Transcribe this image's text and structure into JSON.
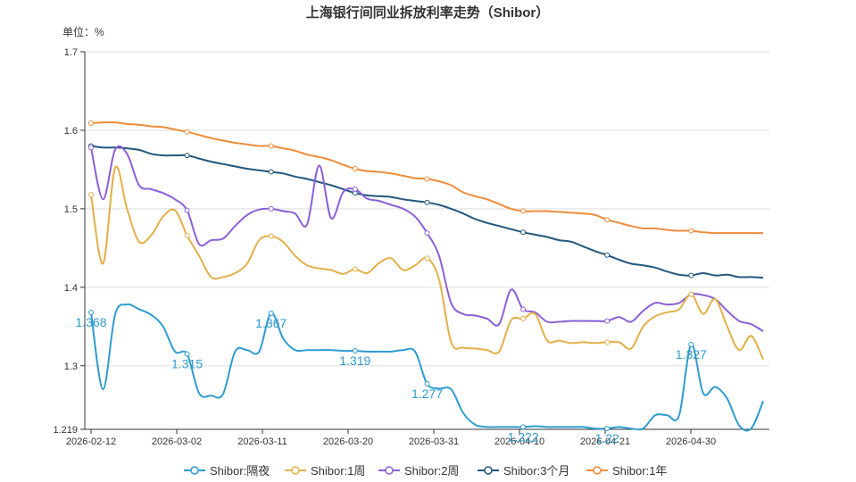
{
  "chart_data": {
    "type": "line",
    "title": "上海银行间同业拆放利率走势（Shibor）",
    "unit_label": "单位：%",
    "ylim": [
      1.219,
      1.7
    ],
    "yticks": [
      "1.219",
      "1.3",
      "1.4",
      "1.5",
      "1.6",
      "1.7"
    ],
    "xticks": [
      "2026-02-12",
      "2026-03-02",
      "2026-03-11",
      "2026-03-20",
      "2026-03-31",
      "2026-04-10",
      "2026-04-21",
      "2026-04-30"
    ],
    "grid": true,
    "legend_position": "bottom",
    "series": [
      {
        "name": "Shibor:隔夜",
        "color": "#2e9ccf",
        "values": [
          1.368,
          1.27,
          1.365,
          1.378,
          1.372,
          1.365,
          1.35,
          1.318,
          1.315,
          1.265,
          1.262,
          1.264,
          1.318,
          1.32,
          1.318,
          1.367,
          1.335,
          1.32,
          1.32,
          1.32,
          1.32,
          1.319,
          1.319,
          1.318,
          1.318,
          1.318,
          1.32,
          1.318,
          1.277,
          1.271,
          1.27,
          1.24,
          1.225,
          1.222,
          1.222,
          1.222,
          1.222,
          1.223,
          1.222,
          1.222,
          1.222,
          1.222,
          1.22,
          1.22,
          1.222,
          1.22,
          1.22,
          1.237,
          1.237,
          1.237,
          1.327,
          1.265,
          1.273,
          1.258,
          1.224,
          1.22,
          1.255
        ],
        "labels": [
          {
            "i": 0,
            "text": "1.368"
          },
          {
            "i": 8,
            "text": "1.315"
          },
          {
            "i": 15,
            "text": "1.367"
          },
          {
            "i": 22,
            "text": "1.319"
          },
          {
            "i": 28,
            "text": "1.277"
          },
          {
            "i": 36,
            "text": "1.222"
          },
          {
            "i": 43,
            "text": "1.22"
          },
          {
            "i": 50,
            "text": "1.327"
          }
        ]
      },
      {
        "name": "Shibor:1周",
        "color": "#e3b04a",
        "values": [
          1.518,
          1.43,
          1.552,
          1.5,
          1.458,
          1.466,
          1.49,
          1.498,
          1.466,
          1.44,
          1.413,
          1.413,
          1.418,
          1.43,
          1.46,
          1.465,
          1.458,
          1.44,
          1.428,
          1.424,
          1.422,
          1.417,
          1.423,
          1.418,
          1.431,
          1.437,
          1.422,
          1.428,
          1.437,
          1.41,
          1.33,
          1.323,
          1.322,
          1.32,
          1.318,
          1.358,
          1.36,
          1.366,
          1.332,
          1.332,
          1.329,
          1.33,
          1.329,
          1.33,
          1.33,
          1.322,
          1.35,
          1.363,
          1.368,
          1.372,
          1.391,
          1.366,
          1.385,
          1.35,
          1.32,
          1.338,
          1.308
        ],
        "labels": []
      },
      {
        "name": "Shibor:2周",
        "color": "#8c5fd6",
        "values": [
          1.578,
          1.512,
          1.575,
          1.57,
          1.53,
          1.525,
          1.52,
          1.512,
          1.498,
          1.455,
          1.46,
          1.462,
          1.478,
          1.492,
          1.499,
          1.5,
          1.497,
          1.494,
          1.48,
          1.555,
          1.488,
          1.521,
          1.525,
          1.513,
          1.51,
          1.505,
          1.5,
          1.49,
          1.469,
          1.44,
          1.38,
          1.366,
          1.364,
          1.36,
          1.353,
          1.397,
          1.372,
          1.368,
          1.356,
          1.356,
          1.357,
          1.357,
          1.357,
          1.357,
          1.362,
          1.356,
          1.37,
          1.38,
          1.378,
          1.38,
          1.391,
          1.39,
          1.385,
          1.37,
          1.357,
          1.353,
          1.344
        ],
        "labels": []
      },
      {
        "name": "Shibor:3个月",
        "color": "#23577e",
        "values": [
          1.58,
          1.578,
          1.578,
          1.577,
          1.575,
          1.57,
          1.568,
          1.568,
          1.568,
          1.564,
          1.56,
          1.557,
          1.554,
          1.551,
          1.549,
          1.547,
          1.545,
          1.541,
          1.538,
          1.534,
          1.53,
          1.525,
          1.52,
          1.517,
          1.516,
          1.515,
          1.512,
          1.51,
          1.508,
          1.505,
          1.5,
          1.494,
          1.487,
          1.482,
          1.478,
          1.474,
          1.47,
          1.467,
          1.464,
          1.46,
          1.458,
          1.452,
          1.446,
          1.441,
          1.435,
          1.43,
          1.428,
          1.425,
          1.42,
          1.416,
          1.415,
          1.418,
          1.415,
          1.416,
          1.413,
          1.413,
          1.412
        ],
        "labels": []
      },
      {
        "name": "Shibor:1年",
        "color": "#ef8c3a",
        "values": [
          1.609,
          1.61,
          1.61,
          1.608,
          1.607,
          1.605,
          1.604,
          1.601,
          1.598,
          1.594,
          1.59,
          1.587,
          1.584,
          1.582,
          1.58,
          1.58,
          1.577,
          1.574,
          1.569,
          1.566,
          1.562,
          1.556,
          1.551,
          1.548,
          1.547,
          1.545,
          1.542,
          1.539,
          1.538,
          1.535,
          1.53,
          1.521,
          1.516,
          1.512,
          1.506,
          1.5,
          1.497,
          1.497,
          1.497,
          1.496,
          1.495,
          1.494,
          1.492,
          1.486,
          1.482,
          1.478,
          1.475,
          1.475,
          1.473,
          1.472,
          1.472,
          1.47,
          1.469,
          1.469,
          1.469,
          1.469,
          1.469
        ],
        "labels": []
      }
    ]
  }
}
